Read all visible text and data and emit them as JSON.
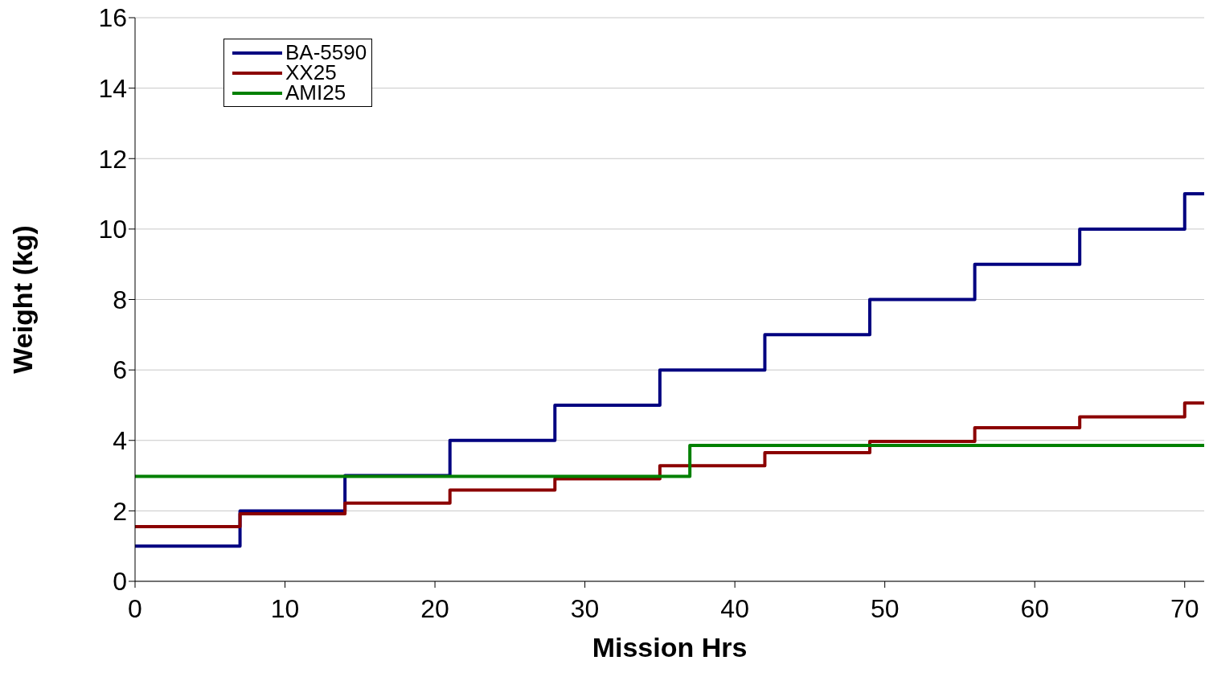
{
  "chart_data": {
    "type": "step",
    "xlabel": "Mission Hrs",
    "ylabel": "Weight (kg)",
    "xlim": [
      0,
      71.3
    ],
    "xticks": [
      0,
      10,
      20,
      30,
      40,
      50,
      60,
      70
    ],
    "ylim": [
      0,
      16
    ],
    "yticks": [
      0,
      2,
      4,
      6,
      8,
      10,
      12,
      14,
      16
    ],
    "grid": "y",
    "legend": "top left",
    "marker": "none",
    "line_style": "solid",
    "series": [
      {
        "name": "BA-5590",
        "color": "#000080",
        "x": [
          0,
          7,
          14,
          21,
          28,
          35,
          42,
          49,
          56,
          63,
          70,
          71.3
        ],
        "values": [
          1,
          2,
          3,
          4,
          5,
          6,
          7,
          8,
          9,
          10,
          11,
          11
        ]
      },
      {
        "name": "XX25",
        "color": "#8b0000",
        "x": [
          0,
          7,
          14,
          21,
          28,
          35,
          42,
          49,
          56,
          63,
          70,
          71.3
        ],
        "values": [
          1.55,
          1.92,
          2.22,
          2.59,
          2.91,
          3.28,
          3.65,
          3.97,
          4.36,
          4.67,
          5.06,
          5.06
        ]
      },
      {
        "name": "AMI25",
        "color": "#008000",
        "x": [
          0,
          37,
          71.3
        ],
        "values": [
          2.98,
          3.86,
          3.86
        ]
      }
    ]
  }
}
